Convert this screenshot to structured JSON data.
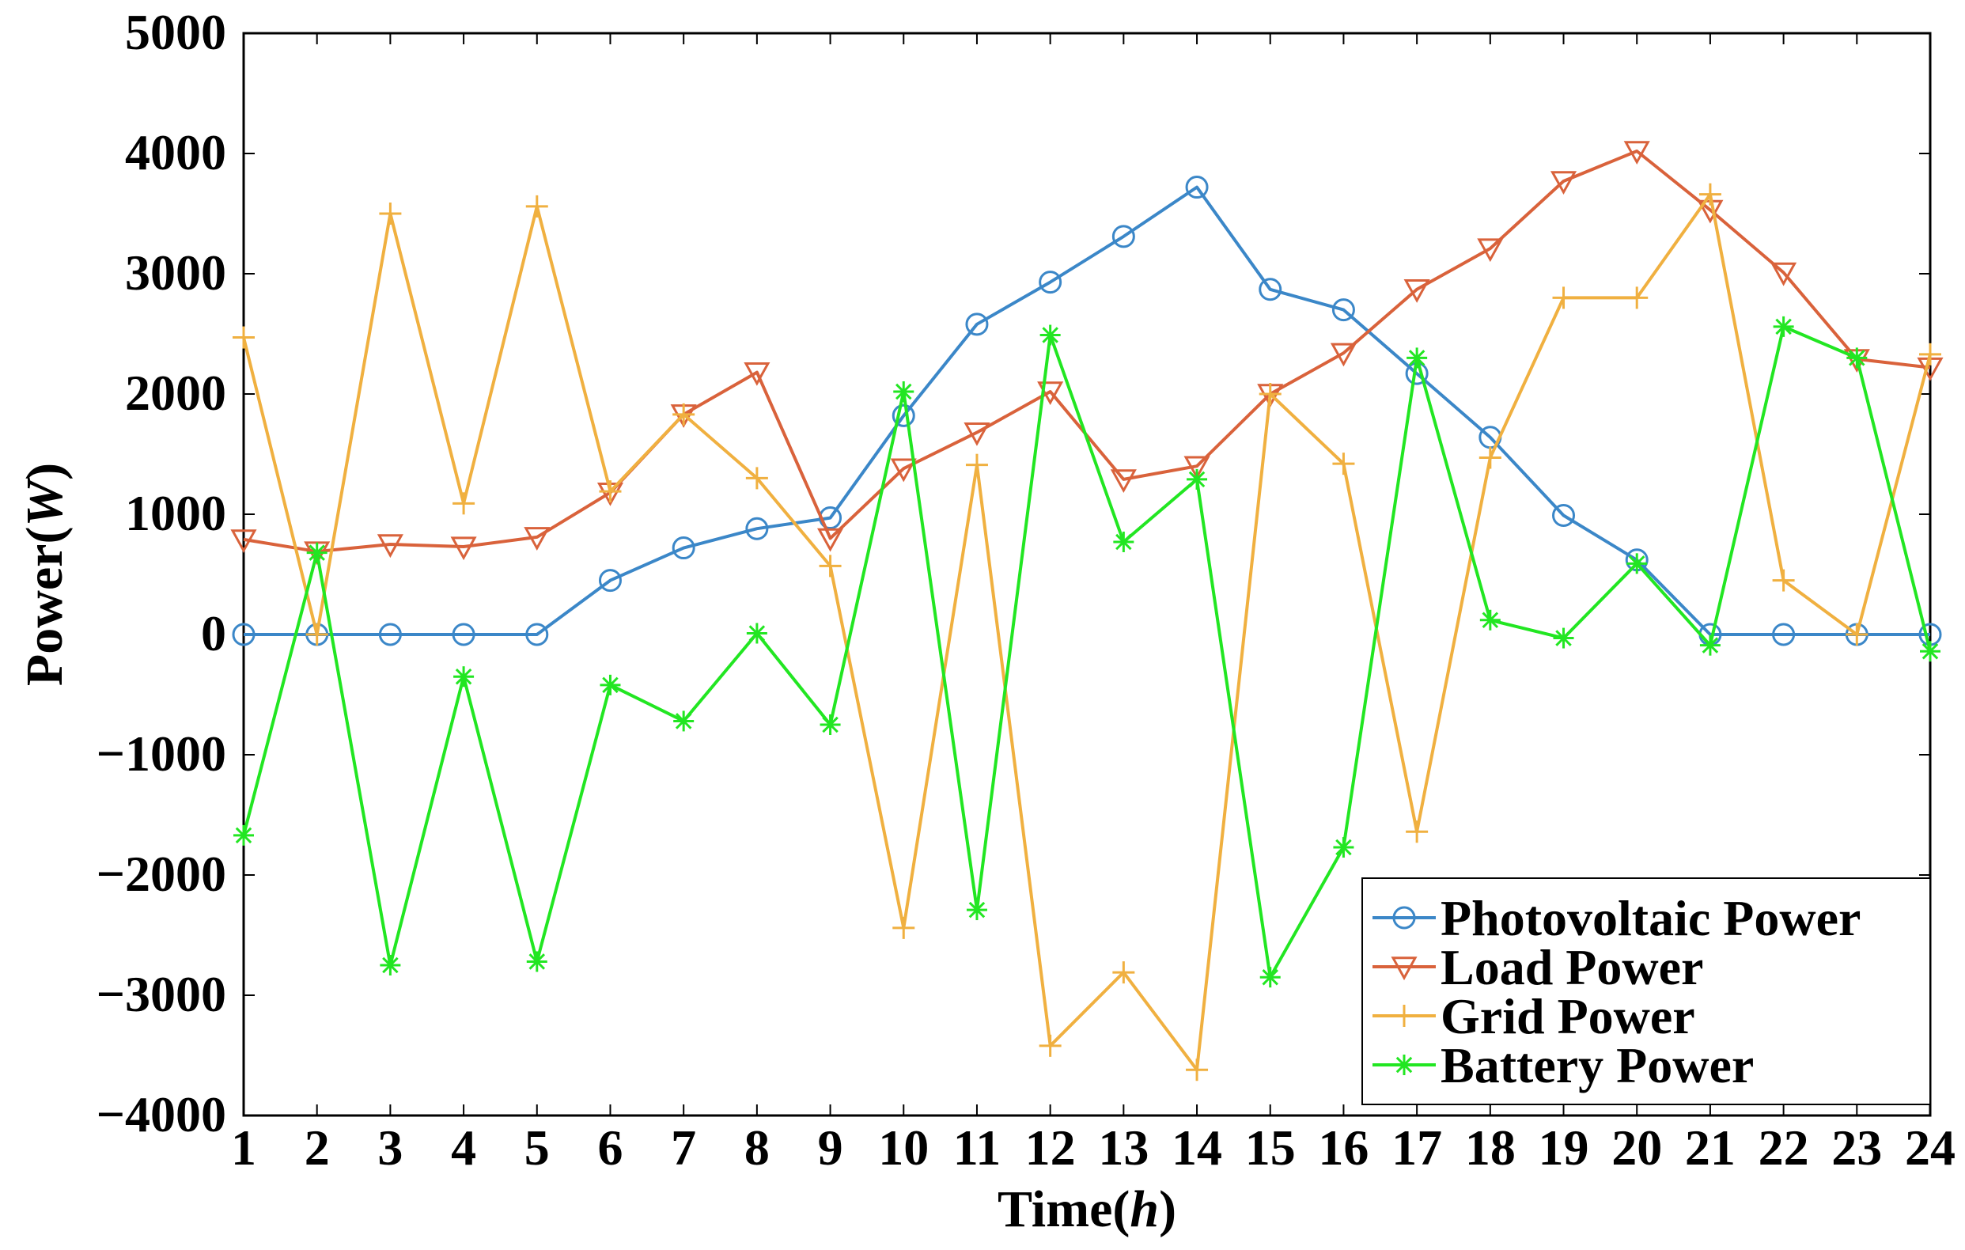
{
  "chart_data": {
    "type": "line",
    "title": "",
    "xlabel": "Time(h)",
    "ylabel": "Power(W)",
    "xlabel_parts": [
      "Time(",
      "h",
      ")"
    ],
    "ylabel_parts": [
      "Power(",
      "W",
      ")"
    ],
    "x": [
      1,
      2,
      3,
      4,
      5,
      6,
      7,
      8,
      9,
      10,
      11,
      12,
      13,
      14,
      15,
      16,
      17,
      18,
      19,
      20,
      21,
      22,
      23,
      24
    ],
    "xlim": [
      1,
      24
    ],
    "ylim": [
      -4000,
      5000
    ],
    "yticks": [
      -4000,
      -3000,
      -2000,
      -1000,
      0,
      1000,
      2000,
      3000,
      4000,
      5000
    ],
    "ytick_labels": [
      "−4000",
      "−3000",
      "−2000",
      "−1000",
      "0",
      "1000",
      "2000",
      "3000",
      "4000",
      "5000"
    ],
    "xtick_labels": [
      "1",
      "2",
      "3",
      "4",
      "5",
      "6",
      "7",
      "8",
      "9",
      "10",
      "11",
      "12",
      "13",
      "14",
      "15",
      "16",
      "17",
      "18",
      "19",
      "20",
      "21",
      "22",
      "23",
      "24"
    ],
    "grid": false,
    "legend": "bottom-right",
    "series": [
      {
        "name": "Photovoltaic Power",
        "color": "#3b87c8",
        "marker": "circle",
        "values": [
          0,
          0,
          0,
          0,
          0,
          450,
          720,
          880,
          970,
          1820,
          2580,
          2930,
          3310,
          3720,
          2870,
          2700,
          2170,
          1640,
          990,
          620,
          0,
          0,
          0,
          0
        ]
      },
      {
        "name": "Load Power",
        "color": "#d9623b",
        "marker": "triangle-down",
        "values": [
          790,
          690,
          750,
          730,
          810,
          1180,
          1830,
          2180,
          800,
          1380,
          1680,
          2020,
          1290,
          1400,
          2000,
          2340,
          2870,
          3210,
          3770,
          4020,
          3530,
          3010,
          2290,
          2220
        ]
      },
      {
        "name": "Grid Power",
        "color": "#f0b040",
        "marker": "plus",
        "values": [
          2470,
          0,
          3500,
          1090,
          3560,
          1190,
          1830,
          1300,
          570,
          -2440,
          1410,
          -3420,
          -2810,
          -3620,
          2000,
          1420,
          -1640,
          1470,
          2800,
          2800,
          3660,
          450,
          0,
          2330
        ]
      },
      {
        "name": "Battery Power",
        "color": "#22e622",
        "marker": "asterisk",
        "values": [
          -1670,
          680,
          -2750,
          -350,
          -2720,
          -420,
          -720,
          10,
          -750,
          2020,
          -2290,
          2490,
          770,
          1290,
          -2850,
          -1770,
          2300,
          120,
          -30,
          590,
          -90,
          2560,
          2300,
          -140
        ]
      }
    ]
  }
}
